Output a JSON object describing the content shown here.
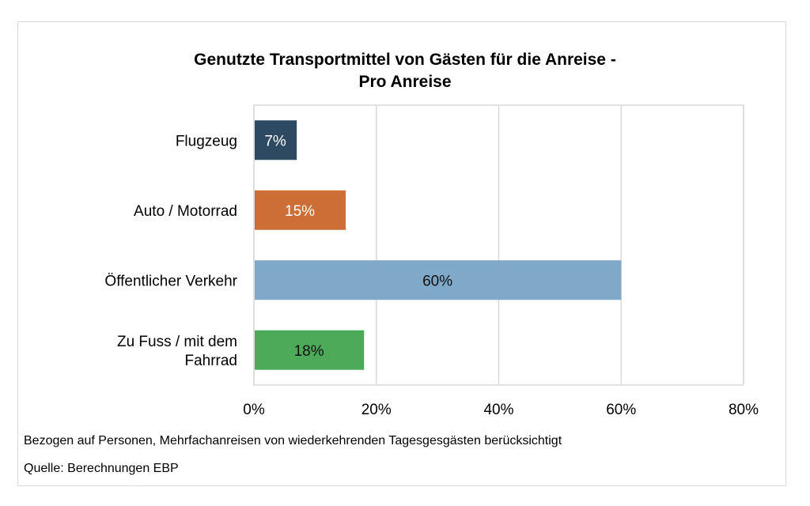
{
  "chart_data": {
    "type": "bar",
    "orientation": "horizontal",
    "title_lines": [
      "Genutzte Transportmittel von Gästen für die Anreise -",
      "Pro Anreise"
    ],
    "categories": [
      [
        "Flugzeug"
      ],
      [
        "Auto / Motorrad"
      ],
      [
        "Öffentlicher Verkehr"
      ],
      [
        "Zu Fuss / mit dem",
        "Fahrrad"
      ]
    ],
    "values": [
      7,
      15,
      60,
      18
    ],
    "data_labels": [
      "7%",
      "15%",
      "60%",
      "18%"
    ],
    "colors": [
      "#2d4a62",
      "#cc6e36",
      "#7fa8c9",
      "#4caa58"
    ],
    "label_colors": [
      "#ffffff",
      "#ffffff",
      "#111111",
      "#111111"
    ],
    "xlim": [
      0,
      80
    ],
    "xticks": [
      0,
      20,
      40,
      60,
      80
    ],
    "xtick_labels": [
      "0%",
      "20%",
      "40%",
      "60%",
      "80%"
    ],
    "grid": true,
    "legend": "none"
  },
  "notes": {
    "basis": "Bezogen auf Personen, Mehrfachanreisen von wiederkehrenden Tagesgesgästen berücksichtigt",
    "source": "Quelle: Berechnungen EBP"
  }
}
